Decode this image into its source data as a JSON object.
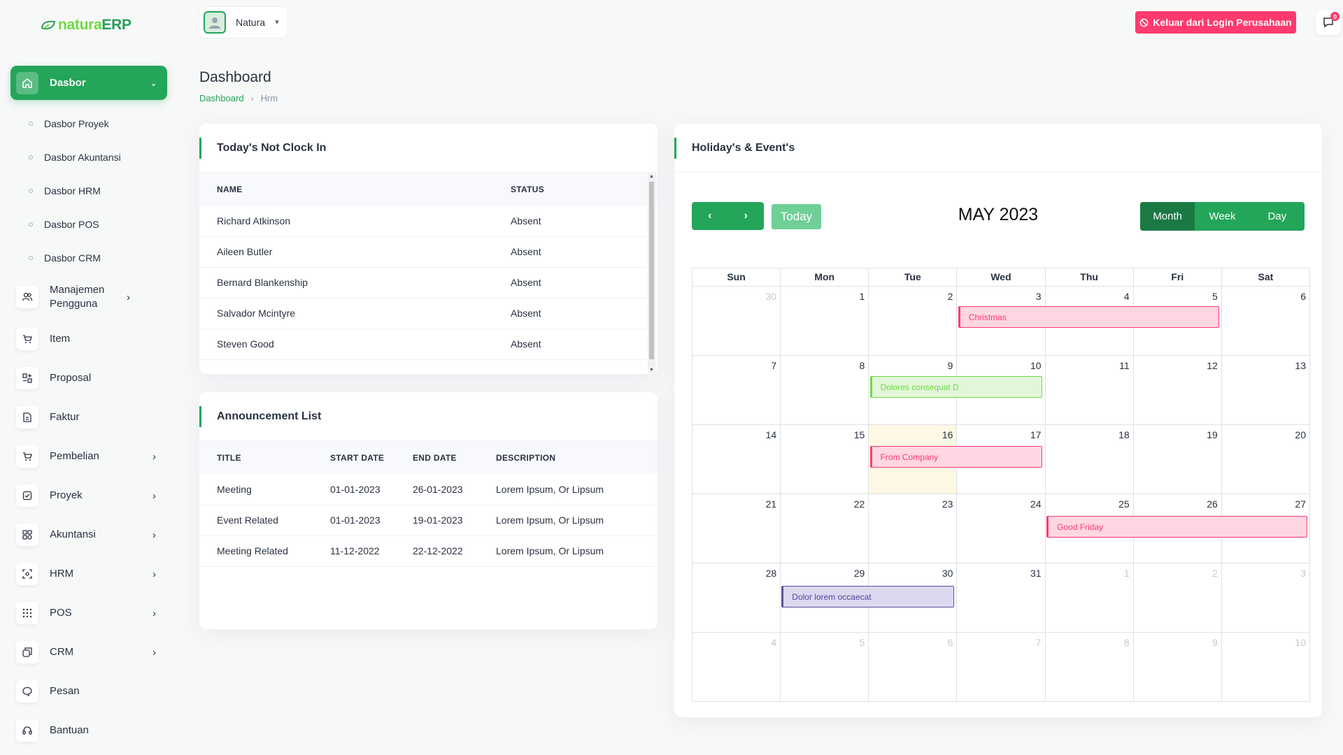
{
  "brand": {
    "part1": "natura",
    "part2": "ERP"
  },
  "sidebar": {
    "active": {
      "label": "Dasbor"
    },
    "sub_items": [
      "Dasbor Proyek",
      "Dasbor Akuntansi",
      "Dasbor HRM",
      "Dasbor POS",
      "Dasbor CRM"
    ],
    "items": [
      {
        "label": "Manajemen Pengguna",
        "icon": "users-icon",
        "has_children": true
      },
      {
        "label": "Item",
        "icon": "cart-icon",
        "has_children": false
      },
      {
        "label": "Proposal",
        "icon": "proposal-icon",
        "has_children": false
      },
      {
        "label": "Faktur",
        "icon": "invoice-icon",
        "has_children": false
      },
      {
        "label": "Pembelian",
        "icon": "cart-icon",
        "has_children": true
      },
      {
        "label": "Proyek",
        "icon": "checkbox-icon",
        "has_children": true
      },
      {
        "label": "Akuntansi",
        "icon": "grid-icon",
        "has_children": true
      },
      {
        "label": "HRM",
        "icon": "focus-icon",
        "has_children": true
      },
      {
        "label": "POS",
        "icon": "dots-grid-icon",
        "has_children": true
      },
      {
        "label": "CRM",
        "icon": "layers-icon",
        "has_children": true
      },
      {
        "label": "Pesan",
        "icon": "chat-icon",
        "has_children": false
      },
      {
        "label": "Bantuan",
        "icon": "headset-icon",
        "has_children": false
      }
    ]
  },
  "header": {
    "user_name": "Natura",
    "logout_label": "Keluar dari Login Perusahaan",
    "message_count": "0"
  },
  "page": {
    "title": "Dashboard",
    "breadcrumb": [
      "Dashboard",
      "Hrm"
    ]
  },
  "not_clock_in": {
    "title": "Today's Not Clock In",
    "columns": [
      "NAME",
      "STATUS"
    ],
    "rows": [
      [
        "Richard Atkinson",
        "Absent"
      ],
      [
        "Aileen Butler",
        "Absent"
      ],
      [
        "Bernard Blankenship",
        "Absent"
      ],
      [
        "Salvador Mcintyre",
        "Absent"
      ],
      [
        "Steven Good",
        "Absent"
      ]
    ]
  },
  "announcements": {
    "title": "Announcement List",
    "columns": [
      "TITLE",
      "START DATE",
      "END DATE",
      "DESCRIPTION"
    ],
    "rows": [
      [
        "Meeting",
        "01-01-2023",
        "26-01-2023",
        "Lorem Ipsum, Or Lipsum"
      ],
      [
        "Event Related",
        "01-01-2023",
        "19-01-2023",
        "Lorem Ipsum, Or Lipsum"
      ],
      [
        "Meeting Related",
        "11-12-2022",
        "22-12-2022",
        "Lorem Ipsum, Or Lipsum"
      ]
    ]
  },
  "calendar": {
    "card_title": "Holiday's & Event's",
    "month_title": "MAY 2023",
    "today_label": "Today",
    "prev_label": "‹",
    "next_label": "›",
    "views": [
      "Month",
      "Week",
      "Day"
    ],
    "active_view": "Month",
    "weekdays": [
      "Sun",
      "Mon",
      "Tue",
      "Wed",
      "Thu",
      "Fri",
      "Sat"
    ],
    "weeks": [
      [
        [
          "30",
          true
        ],
        [
          "1",
          false
        ],
        [
          "2",
          false
        ],
        [
          "3",
          false
        ],
        [
          "4",
          false
        ],
        [
          "5",
          false
        ],
        [
          "6",
          false
        ]
      ],
      [
        [
          "7",
          false
        ],
        [
          "8",
          false
        ],
        [
          "9",
          false
        ],
        [
          "10",
          false
        ],
        [
          "11",
          false
        ],
        [
          "12",
          false
        ],
        [
          "13",
          false
        ]
      ],
      [
        [
          "14",
          false
        ],
        [
          "15",
          false
        ],
        [
          "16",
          false
        ],
        [
          "17",
          false
        ],
        [
          "18",
          false
        ],
        [
          "19",
          false
        ],
        [
          "20",
          false
        ]
      ],
      [
        [
          "21",
          false
        ],
        [
          "22",
          false
        ],
        [
          "23",
          false
        ],
        [
          "24",
          false
        ],
        [
          "25",
          false
        ],
        [
          "26",
          false
        ],
        [
          "27",
          false
        ]
      ],
      [
        [
          "28",
          false
        ],
        [
          "29",
          false
        ],
        [
          "30",
          false
        ],
        [
          "31",
          false
        ],
        [
          "1",
          true
        ],
        [
          "2",
          true
        ],
        [
          "3",
          true
        ]
      ],
      [
        [
          "4",
          true
        ],
        [
          "5",
          true
        ],
        [
          "6",
          true
        ],
        [
          "7",
          true
        ],
        [
          "8",
          true
        ],
        [
          "9",
          true
        ],
        [
          "10",
          true
        ]
      ]
    ],
    "today_cell": [
      2,
      2
    ],
    "events": [
      {
        "title": "Christmas",
        "week": 0,
        "start_day": 3,
        "end_day": 5,
        "color": "#ff3a6e",
        "bg": "#ffd6e2",
        "text": "#ff3a6e"
      },
      {
        "title": "Dolores consequat D",
        "week": 1,
        "start_day": 2,
        "end_day": 3,
        "color": "#6fd943",
        "bg": "#e2f7d9",
        "text": "#6fd943"
      },
      {
        "title": "From Company",
        "week": 2,
        "start_day": 2,
        "end_day": 3,
        "color": "#ff3a6e",
        "bg": "#ffd6e2",
        "text": "#ff3a6e"
      },
      {
        "title": "Good Friday",
        "week": 3,
        "start_day": 4,
        "end_day": 6,
        "color": "#ff3a6e",
        "bg": "#ffd6e2",
        "text": "#ff3a6e"
      },
      {
        "title": "Dolor lorem occaecat",
        "week": 4,
        "start_day": 1,
        "end_day": 2,
        "color": "#5d4f9e",
        "bg": "#dcd8ef",
        "text": "#51459d"
      }
    ]
  },
  "colors": {
    "primary": "#23a55a",
    "danger": "#ff3a6e"
  }
}
